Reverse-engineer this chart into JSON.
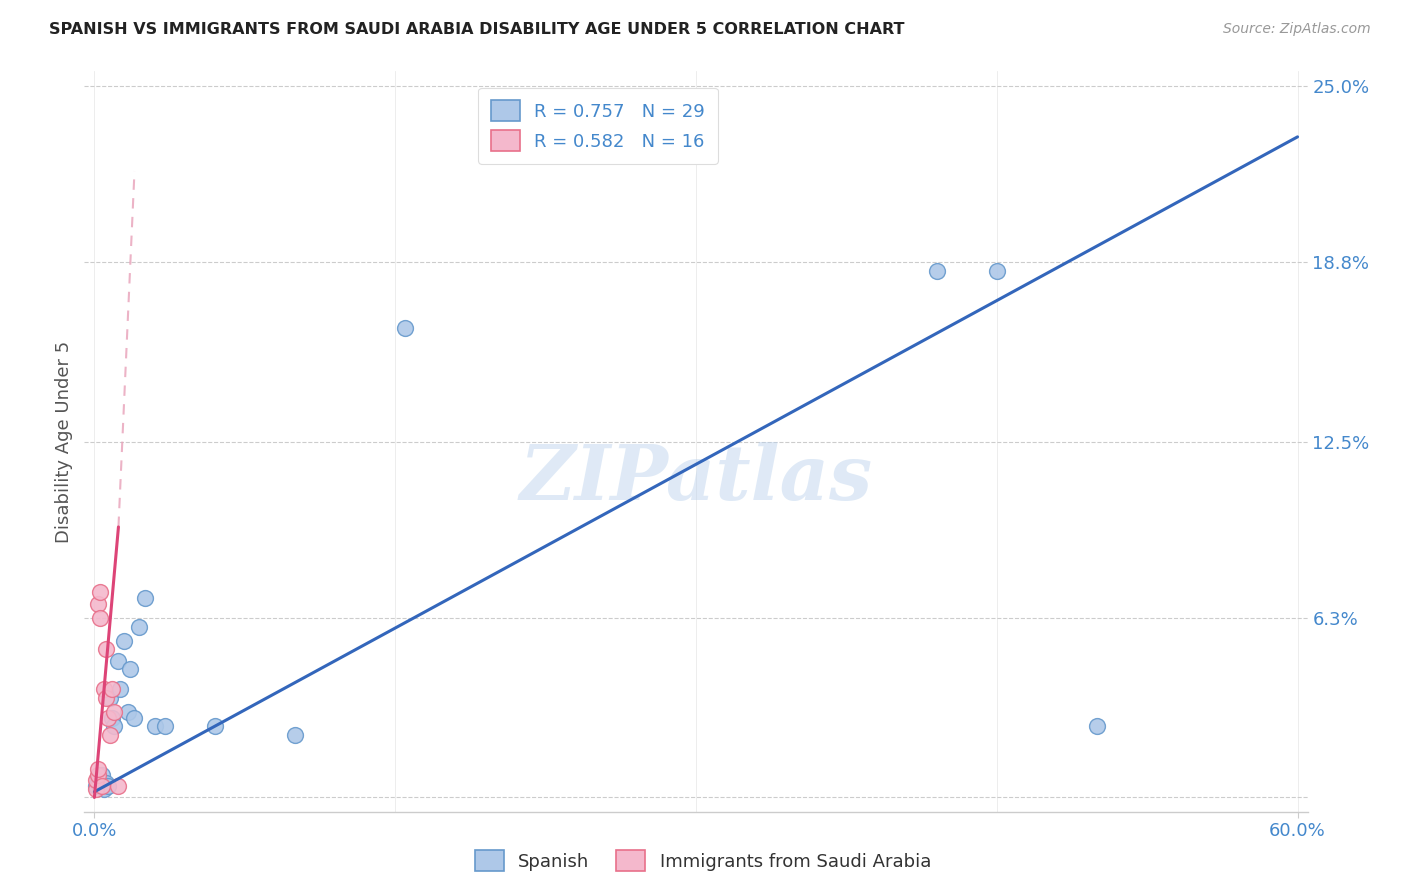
{
  "title": "SPANISH VS IMMIGRANTS FROM SAUDI ARABIA DISABILITY AGE UNDER 5 CORRELATION CHART",
  "source": "Source: ZipAtlas.com",
  "ylabel_label": "Disability Age Under 5",
  "legend_label1": "Spanish",
  "legend_label2": "Immigrants from Saudi Arabia",
  "watermark": "ZIPatlas",
  "r1": 0.757,
  "n1": 29,
  "r2": 0.582,
  "n2": 16,
  "xlim": [
    -0.005,
    0.605
  ],
  "ylim": [
    -0.005,
    0.255
  ],
  "blue_face": "#aec8e8",
  "blue_edge": "#6699cc",
  "pink_face": "#f4b8cc",
  "pink_edge": "#e8708a",
  "line_blue": "#3366bb",
  "line_pink": "#dd4477",
  "line_pink_dash": "#e8a0b8",
  "grid_color": "#cccccc",
  "tick_color": "#4488cc",
  "blue_line_x0": 0.0,
  "blue_line_y0": 0.002,
  "blue_line_x1": 0.6,
  "blue_line_y1": 0.232,
  "pink_line_solid_x0": 0.0,
  "pink_line_solid_y0": 0.0,
  "pink_line_solid_x1": 0.012,
  "pink_line_solid_y1": 0.095,
  "pink_line_dash_x0": 0.012,
  "pink_line_dash_y0": 0.095,
  "pink_line_dash_x1": 0.02,
  "pink_line_dash_y1": 0.22,
  "blue_scatter_x": [
    0.001,
    0.002,
    0.002,
    0.003,
    0.003,
    0.004,
    0.004,
    0.005,
    0.006,
    0.007,
    0.008,
    0.009,
    0.01,
    0.012,
    0.013,
    0.015,
    0.017,
    0.018,
    0.02,
    0.022,
    0.025,
    0.03,
    0.035,
    0.06,
    0.1,
    0.155,
    0.42,
    0.45,
    0.5
  ],
  "blue_scatter_y": [
    0.004,
    0.005,
    0.007,
    0.004,
    0.006,
    0.008,
    0.005,
    0.003,
    0.005,
    0.004,
    0.035,
    0.028,
    0.025,
    0.048,
    0.038,
    0.055,
    0.03,
    0.045,
    0.028,
    0.06,
    0.07,
    0.025,
    0.025,
    0.025,
    0.022,
    0.165,
    0.185,
    0.185,
    0.025
  ],
  "pink_scatter_x": [
    0.001,
    0.001,
    0.002,
    0.002,
    0.002,
    0.003,
    0.003,
    0.004,
    0.005,
    0.006,
    0.006,
    0.007,
    0.008,
    0.009,
    0.01,
    0.012
  ],
  "pink_scatter_y": [
    0.003,
    0.006,
    0.008,
    0.01,
    0.068,
    0.063,
    0.072,
    0.004,
    0.038,
    0.035,
    0.052,
    0.028,
    0.022,
    0.038,
    0.03,
    0.004
  ]
}
